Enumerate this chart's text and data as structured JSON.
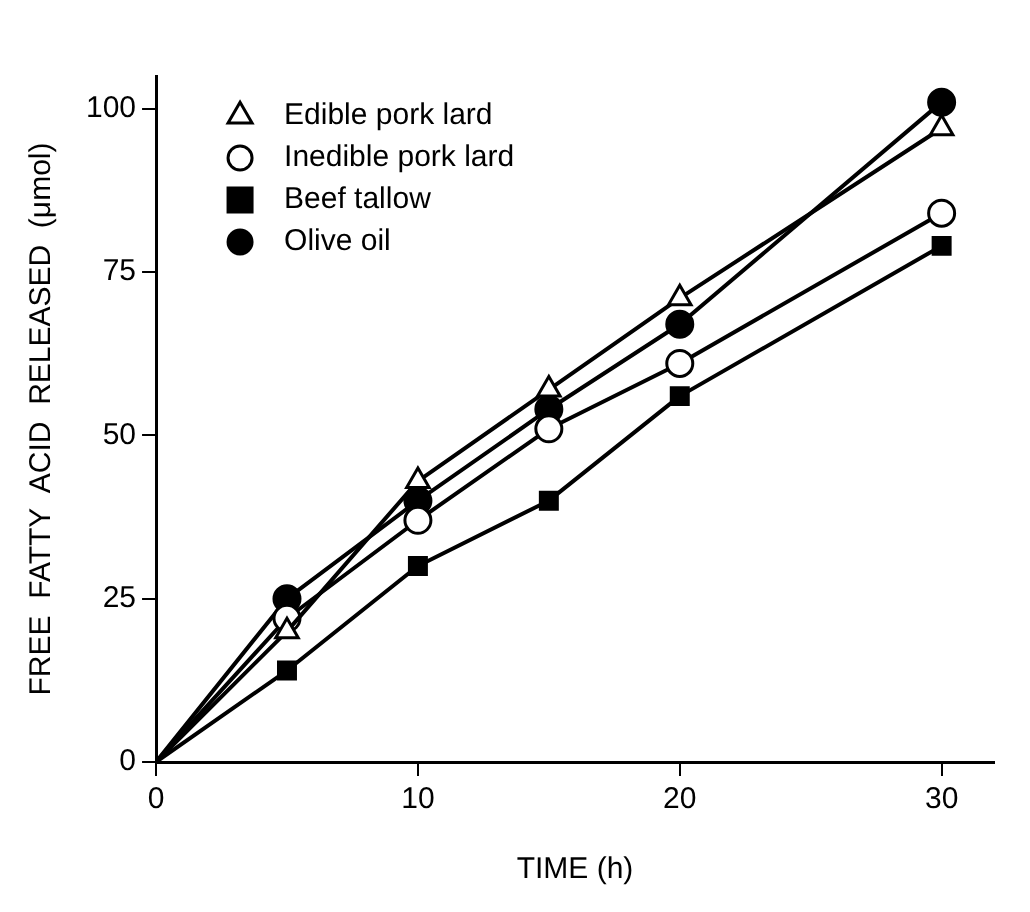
{
  "chart_data": {
    "type": "line",
    "xlabel": "TIME (h)",
    "ylabel": "FREE  FATTY  ACID  RELEASED  (μmol)",
    "x": [
      0,
      5,
      10,
      15,
      20,
      30
    ],
    "series": [
      {
        "name": "Edible pork lard",
        "color": "#000000",
        "marker": "triangle",
        "values": [
          0,
          20,
          43,
          57,
          71,
          97
        ]
      },
      {
        "name": "Inedible pork lard",
        "color": "#000000",
        "marker": "circle",
        "values": [
          0,
          22,
          37,
          51,
          61,
          84
        ]
      },
      {
        "name": "Beef tallow",
        "color": "#000000",
        "marker": "square",
        "values": [
          0,
          14,
          30,
          40,
          56,
          79
        ]
      },
      {
        "name": "Olive oil",
        "color": "#000000",
        "marker": "circle",
        "values": [
          0,
          25,
          40,
          54,
          67,
          101
        ]
      }
    ],
    "xlim": [
      0,
      32
    ],
    "xticks": [
      0,
      10,
      20,
      30
    ],
    "ylim": [
      0,
      105
    ],
    "yticks": [
      0,
      25,
      50,
      75,
      100
    ],
    "grid": false,
    "legend": "top left",
    "line_style": "solid"
  }
}
